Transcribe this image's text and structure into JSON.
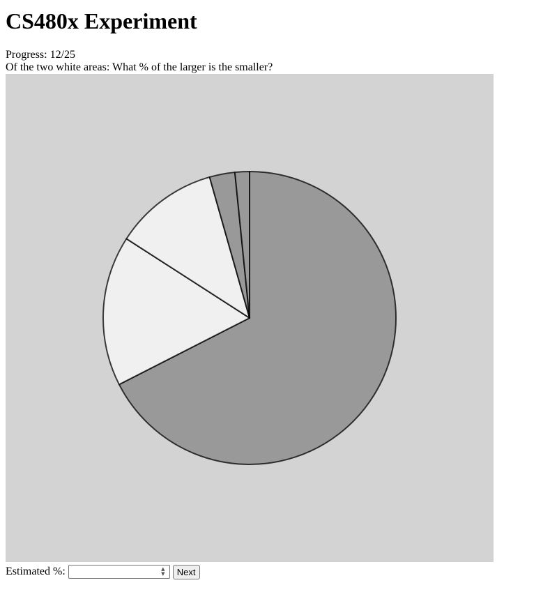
{
  "page": {
    "title": "CS480x Experiment",
    "progress_label": "Progress:",
    "progress_value": "12/25",
    "question": "Of the two white areas: What % of the larger is the smaller?"
  },
  "form": {
    "estimate_label": "Estimated %:",
    "estimate_value": "",
    "next_label": "Next"
  },
  "colors": {
    "background": "#d3d3d3",
    "highlight_fill": "#f0f0f0",
    "normal_fill": "#999999",
    "stroke": "#000000"
  },
  "chart_data": {
    "type": "pie",
    "title": "",
    "values": [
      67.5,
      16.6,
      11.5,
      2.8,
      1.6
    ],
    "highlighted": [
      false,
      true,
      true,
      false,
      false
    ],
    "start": "top",
    "direction": "clockwise"
  }
}
